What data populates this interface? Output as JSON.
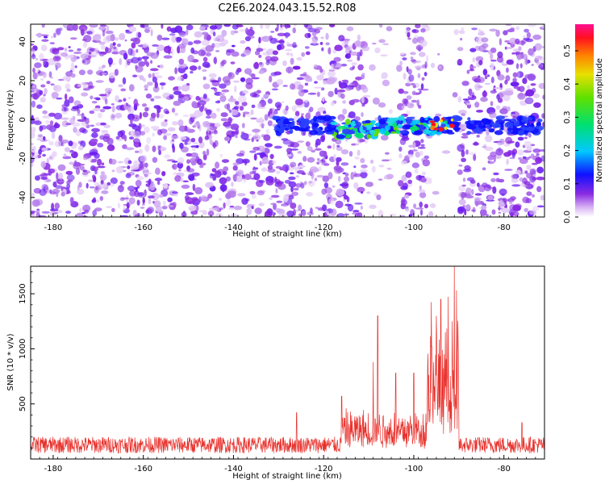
{
  "title": "C2E6.2024.043.15.52.R08",
  "chart_data": [
    {
      "type": "heatmap",
      "xlabel": "Height of straight line (km)",
      "ylabel": "Frequency (Hz)",
      "xlim": [
        -185,
        -71
      ],
      "ylim": [
        -50,
        49
      ],
      "xticks": [
        -180,
        -160,
        -140,
        -120,
        -100,
        -80
      ],
      "yticks": [
        -40,
        -20,
        0,
        20,
        40
      ],
      "colorbar": {
        "label": "Normalized spectral amplitude",
        "range": [
          0,
          0.58
        ],
        "ticks": [
          0.0,
          0.1,
          0.2,
          0.3,
          0.4,
          0.5
        ]
      },
      "data_gaps_km": [
        [
          -111,
          -103
        ],
        [
          -97,
          -90
        ]
      ],
      "signal_band": {
        "x_range": [
          -131,
          -72
        ],
        "frequency_center": 0,
        "peak_region_km": [
          -96,
          -91
        ]
      },
      "grid": false
    },
    {
      "type": "line",
      "xlabel": "Height of straight line (km)",
      "ylabel": "SNR (10 * v/v)",
      "xlim": [
        -185,
        -71
      ],
      "ylim": [
        0,
        1750
      ],
      "xticks": [
        -180,
        -160,
        -140,
        -120,
        -100,
        -80
      ],
      "yticks": [
        500,
        1000,
        1500
      ],
      "color": "#e8312c",
      "grid": false,
      "peaks": [
        {
          "x": -126,
          "y": 420
        },
        {
          "x": -116,
          "y": 570
        },
        {
          "x": -109,
          "y": 880
        },
        {
          "x": -108,
          "y": 1300
        },
        {
          "x": -104,
          "y": 780
        },
        {
          "x": -100,
          "y": 780
        },
        {
          "x": -96,
          "y": 1020
        },
        {
          "x": -95,
          "y": 1300
        },
        {
          "x": -94,
          "y": 1450
        },
        {
          "x": -93,
          "y": 1150
        },
        {
          "x": -91.5,
          "y": 1250
        },
        {
          "x": -91,
          "y": 1750
        },
        {
          "x": -90.5,
          "y": 1530
        },
        {
          "x": -76,
          "y": 330
        }
      ],
      "baseline": 150
    }
  ]
}
